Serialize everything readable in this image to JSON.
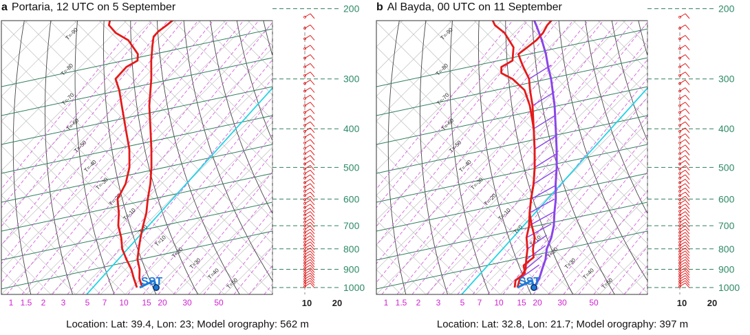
{
  "chart_data": [
    {
      "type": "skew-t",
      "panel_letter": "a",
      "title": "Portaria, 12 UTC on 5 September",
      "location_text": "Location: Lat: 39.4, Lon: 23; Model orography: 562 m",
      "pressure_levels": [
        200,
        300,
        400,
        500,
        600,
        700,
        800,
        900,
        1000
      ],
      "mixing_ratio_ticks": [
        "1",
        "1.5",
        "2",
        "3",
        "5",
        "7",
        "10",
        "15",
        "20",
        "30",
        "50"
      ],
      "isotherm_labels": [
        "T=-90",
        "T=-80",
        "T=-70",
        "T=-60",
        "T=-50",
        "T=-40",
        "T=-30",
        "T=-20",
        "T=-10",
        "T=0",
        "T=10",
        "T=20",
        "T=30",
        "T=40",
        "T=50"
      ],
      "wind_axis_ticks": [
        "10",
        "20"
      ],
      "sst_label": "SST",
      "temperature_profile": [
        [
          1000,
          18
        ],
        [
          950,
          14
        ],
        [
          900,
          11
        ],
        [
          850,
          7
        ],
        [
          800,
          4
        ],
        [
          750,
          1
        ],
        [
          700,
          -2
        ],
        [
          650,
          -5
        ],
        [
          600,
          -9
        ],
        [
          550,
          -13
        ],
        [
          500,
          -18
        ],
        [
          450,
          -24
        ],
        [
          400,
          -31
        ],
        [
          350,
          -39
        ],
        [
          300,
          -47
        ],
        [
          270,
          -53
        ],
        [
          250,
          -57
        ],
        [
          240,
          -59
        ],
        [
          235,
          -60
        ],
        [
          228,
          -60
        ],
        [
          220,
          -59
        ],
        [
          210,
          -58
        ],
        [
          200,
          -57
        ]
      ],
      "dewpoint_profile": [
        [
          1000,
          16
        ],
        [
          950,
          12
        ],
        [
          900,
          8
        ],
        [
          850,
          3
        ],
        [
          800,
          -2
        ],
        [
          750,
          -6
        ],
        [
          700,
          -11
        ],
        [
          650,
          -15
        ],
        [
          600,
          -20
        ],
        [
          550,
          -22
        ],
        [
          500,
          -26
        ],
        [
          450,
          -32
        ],
        [
          400,
          -40
        ],
        [
          350,
          -49
        ],
        [
          320,
          -55
        ],
        [
          300,
          -60
        ],
        [
          280,
          -60
        ],
        [
          270,
          -58
        ],
        [
          260,
          -60
        ],
        [
          240,
          -68
        ],
        [
          230,
          -75
        ],
        [
          220,
          -80
        ],
        [
          210,
          -82
        ],
        [
          200,
          -84
        ]
      ],
      "parcel_profile": [],
      "hook_profile": [
        [
          1000,
          17
        ],
        [
          960,
          20
        ],
        [
          1000,
          23
        ]
      ],
      "sst_point": [
        1000,
        23
      ],
      "wind_range": [
        0,
        20
      ]
    },
    {
      "type": "skew-t",
      "panel_letter": "b",
      "title": "Al Bayda, 00 UTC on 11 September",
      "location_text": "Location: Lat: 32.8, Lon: 21.7; Model orography: 397 m",
      "pressure_levels": [
        200,
        300,
        400,
        500,
        600,
        700,
        800,
        900,
        1000
      ],
      "mixing_ratio_ticks": [
        "1",
        "1.5",
        "2",
        "3",
        "5",
        "7",
        "10",
        "15",
        "20",
        "30",
        "50"
      ],
      "isotherm_labels": [
        "T=-90",
        "T=-80",
        "T=-70",
        "T=-60",
        "T=-50",
        "T=-40",
        "T=-30",
        "T=-20",
        "T=-10",
        "T=0",
        "T=10",
        "T=20",
        "T=30",
        "T=40",
        "T=50"
      ],
      "wind_axis_ticks": [
        "10",
        "20"
      ],
      "sst_label": "SST",
      "temperature_profile": [
        [
          1000,
          18
        ],
        [
          950,
          16
        ],
        [
          900,
          15
        ],
        [
          850,
          12
        ],
        [
          800,
          9
        ],
        [
          750,
          5
        ],
        [
          700,
          2
        ],
        [
          650,
          -2
        ],
        [
          600,
          -6
        ],
        [
          550,
          -10
        ],
        [
          500,
          -15
        ],
        [
          450,
          -21
        ],
        [
          400,
          -28
        ],
        [
          350,
          -36
        ],
        [
          320,
          -42
        ],
        [
          300,
          -46
        ],
        [
          280,
          -52
        ],
        [
          270,
          -55
        ],
        [
          260,
          -58
        ],
        [
          250,
          -57
        ],
        [
          240,
          -56
        ],
        [
          230,
          -56
        ],
        [
          220,
          -57
        ],
        [
          210,
          -57
        ],
        [
          200,
          -57
        ]
      ],
      "dewpoint_profile": [
        [
          1000,
          17
        ],
        [
          960,
          15
        ],
        [
          920,
          16
        ],
        [
          880,
          13
        ],
        [
          840,
          14
        ],
        [
          800,
          11
        ],
        [
          750,
          8
        ],
        [
          700,
          3
        ],
        [
          650,
          -2
        ],
        [
          600,
          -6
        ],
        [
          550,
          -10
        ],
        [
          500,
          -15
        ],
        [
          450,
          -21
        ],
        [
          400,
          -28
        ],
        [
          350,
          -37
        ],
        [
          320,
          -44
        ],
        [
          300,
          -52
        ],
        [
          290,
          -58
        ],
        [
          280,
          -60
        ],
        [
          270,
          -58
        ],
        [
          250,
          -62
        ],
        [
          230,
          -70
        ],
        [
          220,
          -76
        ],
        [
          210,
          -80
        ],
        [
          200,
          -83
        ]
      ],
      "parcel_profile": [
        [
          1000,
          24
        ],
        [
          950,
          23
        ],
        [
          900,
          21
        ],
        [
          850,
          19
        ],
        [
          800,
          16
        ],
        [
          750,
          14
        ],
        [
          700,
          11
        ],
        [
          650,
          7
        ],
        [
          600,
          3
        ],
        [
          550,
          -2
        ],
        [
          500,
          -7
        ],
        [
          450,
          -13
        ],
        [
          400,
          -20
        ],
        [
          350,
          -28
        ],
        [
          300,
          -38
        ],
        [
          280,
          -43
        ],
        [
          260,
          -48
        ],
        [
          240,
          -54
        ],
        [
          220,
          -61
        ],
        [
          200,
          -69
        ]
      ],
      "hook_profile": [
        [
          1000,
          18
        ],
        [
          960,
          21
        ],
        [
          1000,
          24
        ]
      ],
      "sst_point": [
        1000,
        24
      ],
      "wind_range": [
        0,
        20
      ]
    }
  ]
}
